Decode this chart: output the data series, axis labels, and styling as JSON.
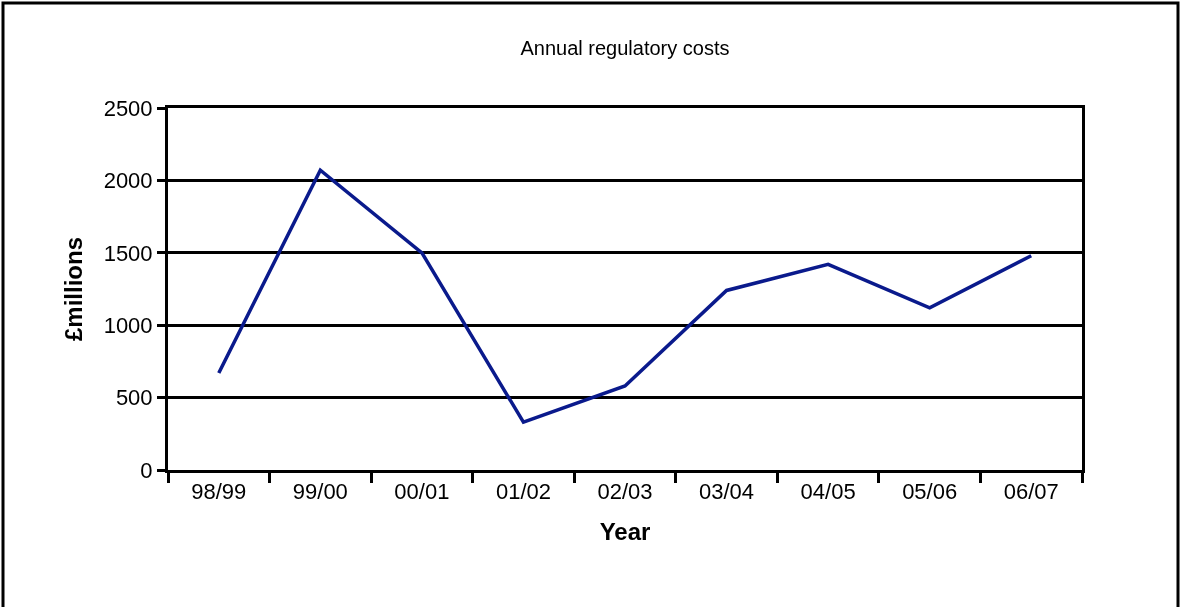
{
  "chart_data": {
    "type": "line",
    "title": "Annual regulatory costs",
    "xlabel": "Year",
    "ylabel": "£millions",
    "categories": [
      "98/99",
      "99/00",
      "00/01",
      "01/02",
      "02/03",
      "03/04",
      "04/05",
      "05/06",
      "06/07"
    ],
    "series": [
      {
        "color": "#0a1a8c",
        "values": [
          670,
          2070,
          1500,
          330,
          580,
          1240,
          1420,
          1120,
          1480
        ]
      }
    ],
    "ylim": [
      0,
      2500
    ],
    "yticks": [
      0,
      500,
      1000,
      1500,
      2000,
      2500
    ],
    "grid": "y",
    "marker": "none",
    "line_style": "solid"
  }
}
